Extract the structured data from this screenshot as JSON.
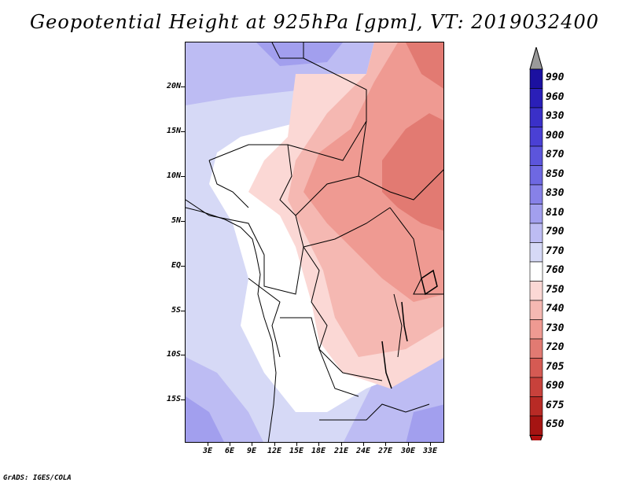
{
  "title": "Geopotential Height at 925hPa [gpm], VT: 2019032400",
  "footer": "GrADS: IGES/COLA",
  "map": {
    "lat_ticks": [
      "20N",
      "15N",
      "10N",
      "5N",
      "EQ",
      "5S",
      "10S",
      "15S"
    ],
    "lon_ticks": [
      "3E",
      "6E",
      "9E",
      "12E",
      "15E",
      "18E",
      "21E",
      "24E",
      "27E",
      "30E",
      "33E"
    ]
  },
  "colorbar": {
    "levels": [
      "990",
      "960",
      "930",
      "900",
      "870",
      "850",
      "830",
      "810",
      "790",
      "770",
      "760",
      "750",
      "740",
      "730",
      "720",
      "705",
      "690",
      "675",
      "650"
    ],
    "colors": [
      "#1b10a0",
      "#2a1fb8",
      "#3a30c8",
      "#4a40d4",
      "#5c55dc",
      "#6e68e2",
      "#8781e8",
      "#a29fee",
      "#bdbcf3",
      "#d6d9f6",
      "#ffffff",
      "#fbd8d5",
      "#f5b8b2",
      "#ef9a92",
      "#e27a72",
      "#d55a53",
      "#c8413b",
      "#b82a25",
      "#a51412"
    ],
    "top_arrow_color": "#9a9a9a",
    "bottom_arrow_color": "#b01010"
  }
}
